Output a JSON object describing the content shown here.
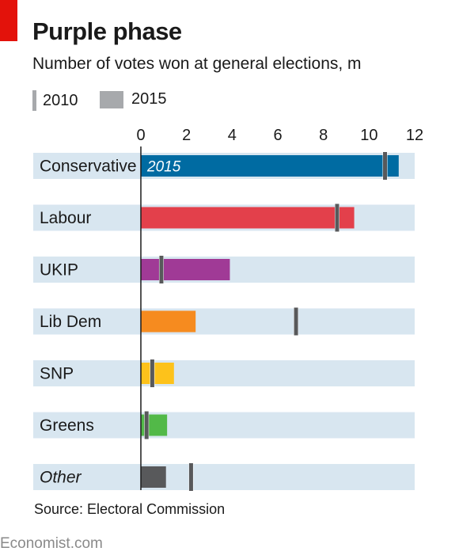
{
  "header": {
    "title": "Purple phase",
    "subtitle": "Number of votes won at general elections, m"
  },
  "legend": {
    "items": [
      {
        "label": "2010"
      },
      {
        "label": "2015"
      }
    ]
  },
  "footer": {
    "source": "Source: Electoral Commission",
    "brand": "Economist.com"
  },
  "chart_data": {
    "type": "bar",
    "orientation": "horizontal",
    "xlim": [
      0,
      12
    ],
    "x_ticks": [
      0,
      2,
      4,
      6,
      8,
      10,
      12
    ],
    "categories": [
      "Conservative",
      "Labour",
      "UKIP",
      "Lib Dem",
      "SNP",
      "Greens",
      "Other"
    ],
    "italic_categories": [
      "Other"
    ],
    "series": [
      {
        "name": "2015",
        "type": "bar",
        "values": [
          11.3,
          9.35,
          3.9,
          2.4,
          1.45,
          1.15,
          1.1
        ]
      },
      {
        "name": "2010",
        "type": "marker",
        "values": [
          10.7,
          8.6,
          0.9,
          6.8,
          0.5,
          0.25,
          2.2
        ]
      }
    ],
    "bar_colors": [
      "#006ba2",
      "#e3404b",
      "#a03a96",
      "#f68b1f",
      "#fdc21b",
      "#52b948",
      "#58595b"
    ],
    "marker_color": "#58595b",
    "row_background": "#d8e6f0",
    "annotation": {
      "category": "Conservative",
      "text": "2015"
    }
  }
}
